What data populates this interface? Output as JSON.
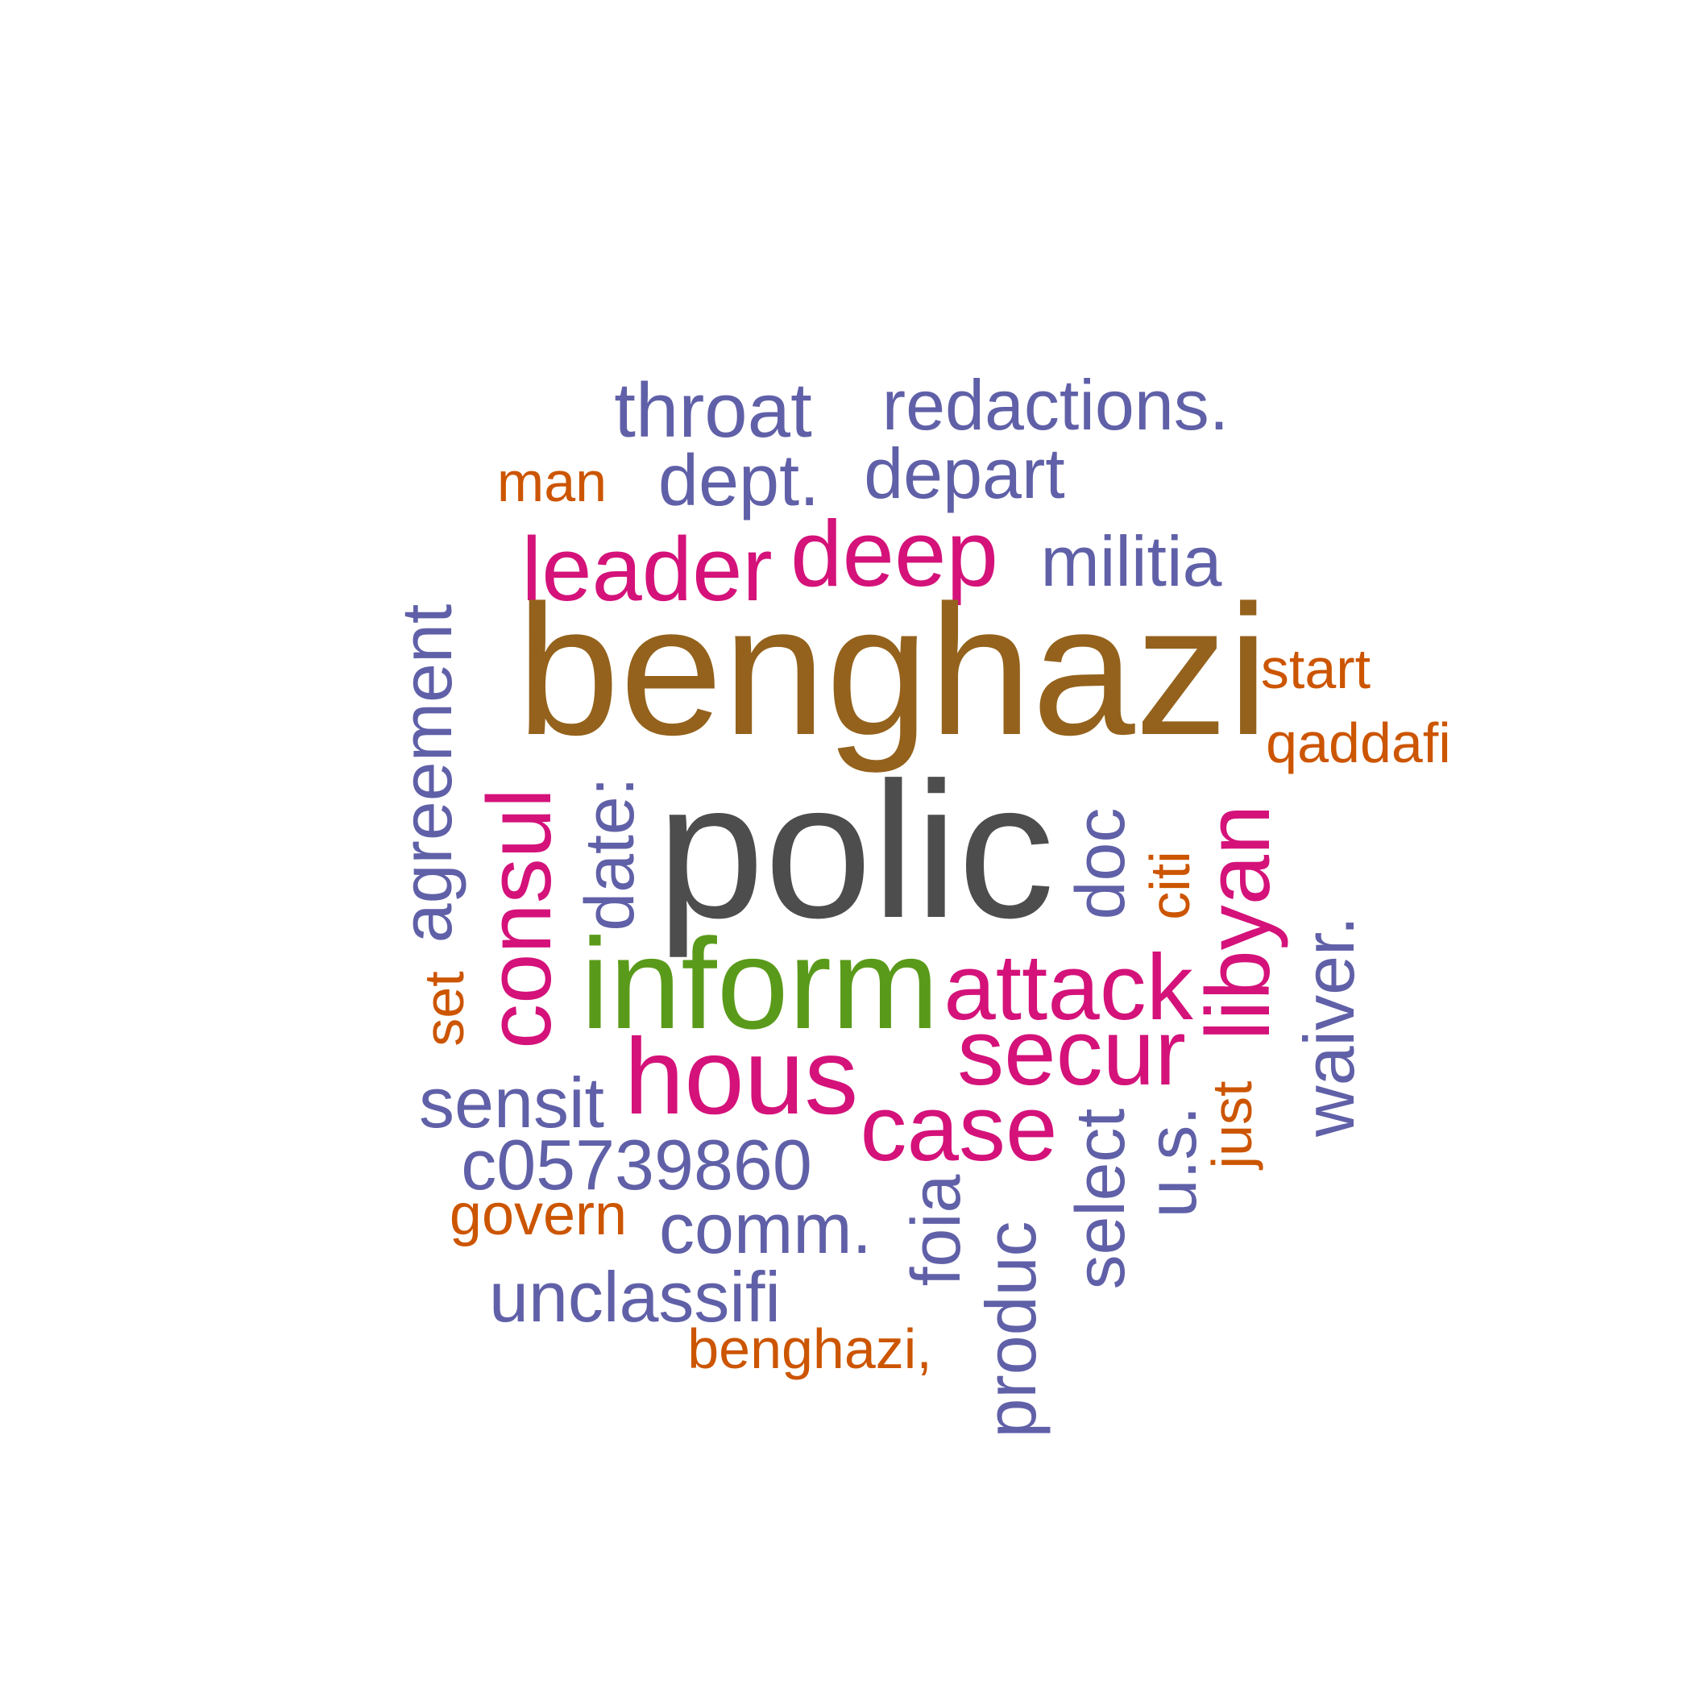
{
  "colors": {
    "purple": "#6060A8",
    "orange": "#CC5500",
    "magenta": "#D4127A",
    "brown": "#94621C",
    "gray": "#4D4D4D",
    "green": "#5A9A1A"
  },
  "words": [
    {
      "text": "throat",
      "color": "#6060A8"
    },
    {
      "text": "redactions.",
      "color": "#6060A8"
    },
    {
      "text": "man",
      "color": "#CC5500"
    },
    {
      "text": "dept.",
      "color": "#6060A8"
    },
    {
      "text": "depart",
      "color": "#6060A8"
    },
    {
      "text": "leader",
      "color": "#D4127A"
    },
    {
      "text": "deep",
      "color": "#D4127A"
    },
    {
      "text": "militia",
      "color": "#6060A8"
    },
    {
      "text": "benghazi",
      "color": "#94621C"
    },
    {
      "text": "start",
      "color": "#CC5500"
    },
    {
      "text": "qaddafi",
      "color": "#CC5500"
    },
    {
      "text": "agreement",
      "color": "#6060A8"
    },
    {
      "text": "set",
      "color": "#CC5500"
    },
    {
      "text": "consul",
      "color": "#D4127A"
    },
    {
      "text": "date:",
      "color": "#6060A8"
    },
    {
      "text": "polic",
      "color": "#4D4D4D"
    },
    {
      "text": "doc",
      "color": "#6060A8"
    },
    {
      "text": "citi",
      "color": "#CC5500"
    },
    {
      "text": "libyan",
      "color": "#D4127A"
    },
    {
      "text": "waiver.",
      "color": "#6060A8"
    },
    {
      "text": "inform",
      "color": "#5A9A1A"
    },
    {
      "text": "attack",
      "color": "#D4127A"
    },
    {
      "text": "secur",
      "color": "#D4127A"
    },
    {
      "text": "hous",
      "color": "#D4127A"
    },
    {
      "text": "sensit",
      "color": "#6060A8"
    },
    {
      "text": "case",
      "color": "#D4127A"
    },
    {
      "text": "select",
      "color": "#6060A8"
    },
    {
      "text": "u.s.",
      "color": "#6060A8"
    },
    {
      "text": "just",
      "color": "#CC5500"
    },
    {
      "text": "c05739860",
      "color": "#6060A8"
    },
    {
      "text": "govern",
      "color": "#CC5500"
    },
    {
      "text": "comm.",
      "color": "#6060A8"
    },
    {
      "text": "foia",
      "color": "#6060A8"
    },
    {
      "text": "produc",
      "color": "#6060A8"
    },
    {
      "text": "unclassifi",
      "color": "#6060A8"
    },
    {
      "text": "benghazi,",
      "color": "#CC5500"
    }
  ]
}
